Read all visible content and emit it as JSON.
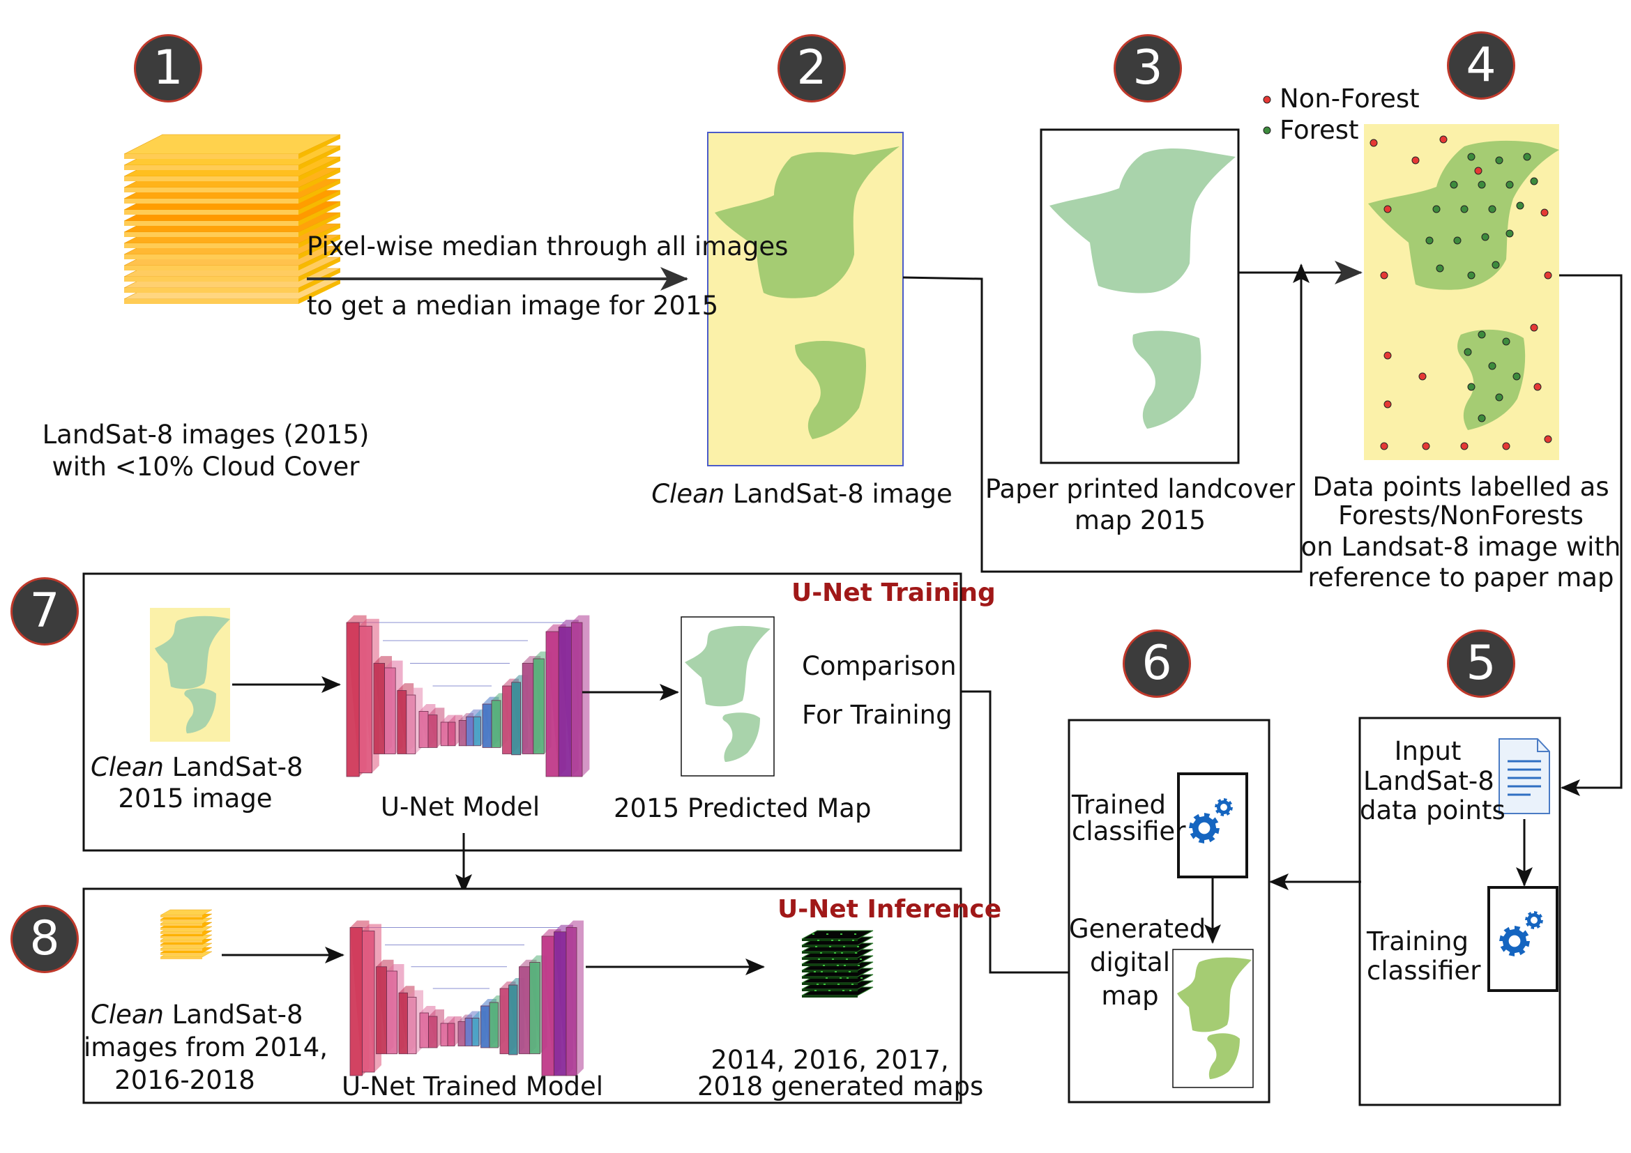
{
  "steps": [
    "1",
    "2",
    "3",
    "4",
    "5",
    "6",
    "7",
    "8"
  ],
  "legend": {
    "non_forest": "Non-Forest",
    "forest": "Forest"
  },
  "arrow_1_2": {
    "line1": "Pixel-wise median through all images",
    "line2": "to get a median image for 2015"
  },
  "step1": {
    "line1": "LandSat-8 images (2015)",
    "line2": "with <10% Cloud Cover"
  },
  "step2": {
    "em": "Clean",
    "rest": " LandSat-8 image"
  },
  "step3": {
    "line1": "Paper printed landcover",
    "line2": "map 2015"
  },
  "step4": {
    "line1": "Data points labelled as",
    "line2": "Forests/NonForests",
    "line3": "on Landsat-8 image with",
    "line4": "reference to paper map"
  },
  "step5": {
    "input_line1": "Input",
    "input_line2": "LandSat-8",
    "input_line3": "data points",
    "train_line1": "Training",
    "train_line2": "classifier"
  },
  "step6": {
    "trained_line1": "Trained",
    "trained_line2": "classifier",
    "gen_line1": "Generated",
    "gen_line2": "digital",
    "gen_line3": "map"
  },
  "panel7": {
    "title": "U-Net Training",
    "input_em": "Clean",
    "input_rest": " LandSat-8",
    "input_line2": "2015 image",
    "model": "U-Net Model",
    "predicted": "2015 Predicted Map",
    "comparison_line1": "Comparison",
    "comparison_line2": "For Training"
  },
  "panel8": {
    "title": "U-Net Inference",
    "input_em": "Clean",
    "input_rest": " LandSat-8",
    "input_line2": "images from 2014,",
    "input_line3": "2016-2018",
    "model": "U-Net Trained Model",
    "output_line1": "2014, 2016, 2017,",
    "output_line2": "2018 generated maps"
  },
  "colors": {
    "imagery_yellow": "#fbf1a9",
    "forest_green": "#a5cc73",
    "map_green": "#a9d3ab",
    "non_forest_dot": "#e53935",
    "forest_dot": "#3d8b3d",
    "badge_fill": "#3c3c3c",
    "badge_ring": "#c0392b",
    "title_red": "#a01818",
    "gear_blue": "#1565c0"
  }
}
